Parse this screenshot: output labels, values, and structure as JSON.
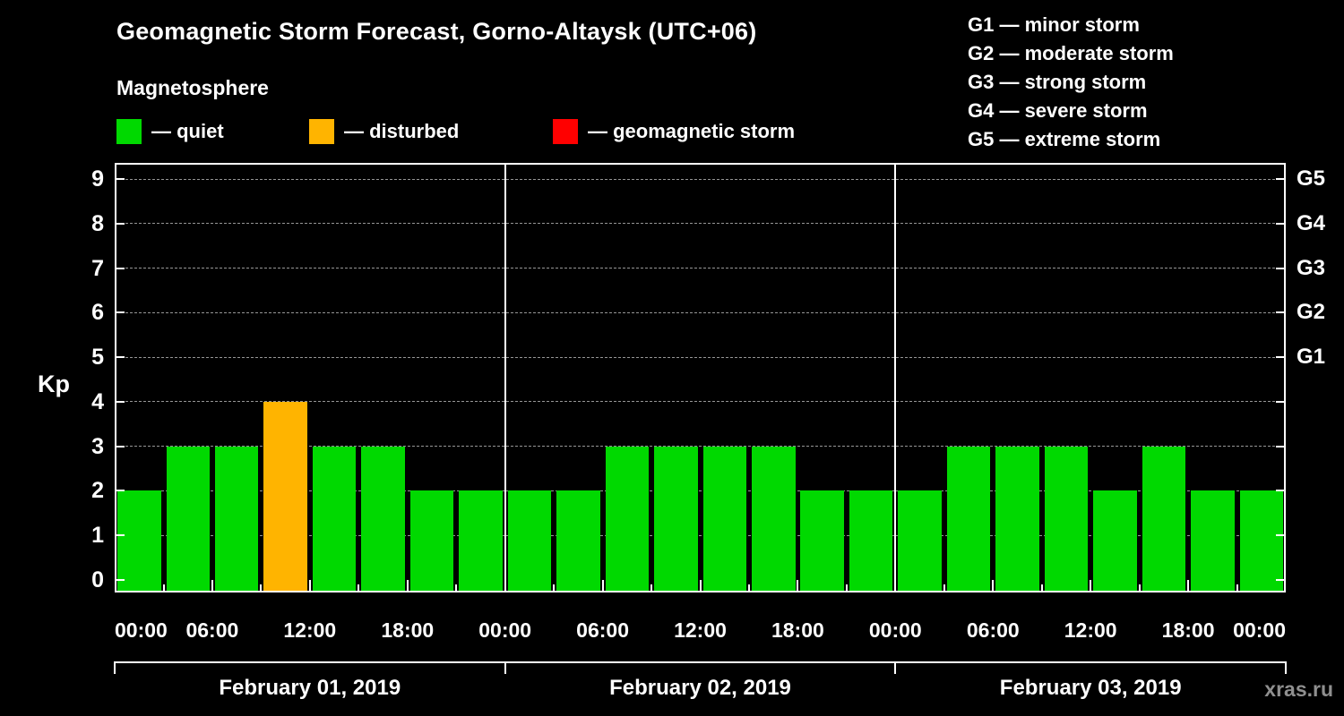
{
  "header": {
    "title": "Geomagnetic Storm Forecast, Gorno-Altaysk (UTC+06)",
    "subtitle": "Magnetosphere"
  },
  "legend": [
    {
      "label": "— quiet",
      "status": "quiet",
      "color": "#00d900"
    },
    {
      "label": "— disturbed",
      "status": "disturbed",
      "color": "#ffb400"
    },
    {
      "label": "— geomagnetic storm",
      "status": "storm",
      "color": "#ff0000"
    }
  ],
  "g_scale": [
    "G1 — minor storm",
    "G2 — moderate storm",
    "G3 — strong storm",
    "G4 — severe storm",
    "G5 — extreme storm"
  ],
  "watermark": "xras.ru",
  "chart_data": {
    "type": "bar",
    "title": "Geomagnetic Storm Forecast, Gorno-Altaysk (UTC+06)",
    "ylabel": "Kp",
    "ylim": [
      0,
      9.4
    ],
    "grid": "horizontal-dashed",
    "legend_position": "top-left",
    "slot_hours": 3,
    "y_ticks": [
      0,
      1,
      2,
      3,
      4,
      5,
      6,
      7,
      8,
      9
    ],
    "right_axis_labels": [
      {
        "kp": 5,
        "label": "G1"
      },
      {
        "kp": 6,
        "label": "G2"
      },
      {
        "kp": 7,
        "label": "G3"
      },
      {
        "kp": 8,
        "label": "G4"
      },
      {
        "kp": 9,
        "label": "G5"
      }
    ],
    "x_tick_hours": [
      0,
      6,
      12,
      18,
      24,
      30,
      36,
      42,
      48,
      54,
      60,
      66,
      72
    ],
    "x_tick_labels": [
      "00:00",
      "06:00",
      "12:00",
      "18:00",
      "00:00",
      "06:00",
      "12:00",
      "18:00",
      "00:00",
      "06:00",
      "12:00",
      "18:00",
      "00:00"
    ],
    "days": [
      "February 01, 2019",
      "February 02, 2019",
      "February 03, 2019"
    ],
    "status_colors": {
      "quiet": "#00d900",
      "disturbed": "#ffb400",
      "storm": "#ff0000"
    },
    "series": [
      {
        "date": "February 01, 2019",
        "kp": [
          2,
          3,
          3,
          4,
          3,
          3,
          2,
          2
        ],
        "status": [
          "quiet",
          "quiet",
          "quiet",
          "disturbed",
          "quiet",
          "quiet",
          "quiet",
          "quiet"
        ]
      },
      {
        "date": "February 02, 2019",
        "kp": [
          2,
          2,
          3,
          3,
          3,
          3,
          2,
          2
        ],
        "status": [
          "quiet",
          "quiet",
          "quiet",
          "quiet",
          "quiet",
          "quiet",
          "quiet",
          "quiet"
        ]
      },
      {
        "date": "February 03, 2019",
        "kp": [
          2,
          3,
          3,
          3,
          2,
          3,
          2,
          2
        ],
        "status": [
          "quiet",
          "quiet",
          "quiet",
          "quiet",
          "quiet",
          "quiet",
          "quiet",
          "quiet"
        ]
      }
    ]
  }
}
